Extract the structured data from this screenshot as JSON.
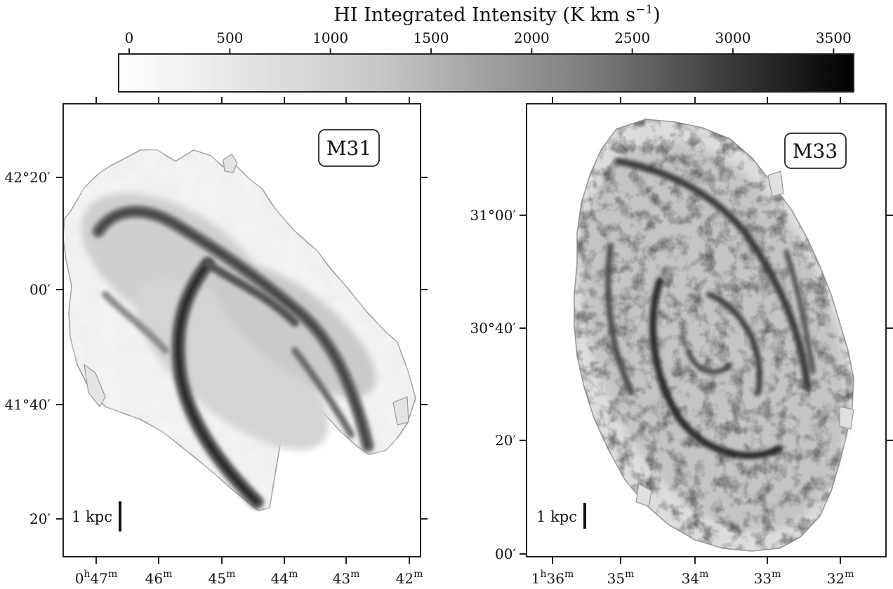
{
  "figure": {
    "colorbar": {
      "title": "HI Integrated Intensity (K km s",
      "title_sup": "−1",
      "title_close": ")",
      "ticks": [
        "0",
        "500",
        "1000",
        "1500",
        "2000",
        "2500",
        "3000",
        "3500"
      ],
      "tick_values": [
        0,
        500,
        1000,
        1500,
        2000,
        2500,
        3000,
        3500
      ],
      "range": [
        0,
        3600
      ],
      "colormap": "white-to-black grayscale",
      "color_low": "#ffffff",
      "color_high": "#000000"
    },
    "panels": [
      {
        "label": "M31",
        "scalebar": "1 kpc",
        "dec_ticks": [
          "42°20′",
          "00′",
          "41°40′",
          "20′"
        ],
        "ra_ticks": [
          {
            "main": "0",
            "h": "h",
            "rest": "47",
            "m": "m"
          },
          {
            "main": "",
            "h": "",
            "rest": "46",
            "m": "m"
          },
          {
            "main": "",
            "h": "",
            "rest": "45",
            "m": "m"
          },
          {
            "main": "",
            "h": "",
            "rest": "44",
            "m": "m"
          },
          {
            "main": "",
            "h": "",
            "rest": "43",
            "m": "m"
          },
          {
            "main": "",
            "h": "",
            "rest": "42",
            "m": "m"
          }
        ]
      },
      {
        "label": "M33",
        "scalebar": "1 kpc",
        "dec_ticks": [
          "31°00′",
          "30°40′",
          "20′",
          "00′"
        ],
        "ra_ticks": [
          {
            "main": "1",
            "h": "h",
            "rest": "36",
            "m": "m"
          },
          {
            "main": "",
            "h": "",
            "rest": "35",
            "m": "m"
          },
          {
            "main": "",
            "h": "",
            "rest": "34",
            "m": "m"
          },
          {
            "main": "",
            "h": "",
            "rest": "33",
            "m": "m"
          },
          {
            "main": "",
            "h": "",
            "rest": "32",
            "m": "m"
          }
        ]
      }
    ]
  },
  "chart_data": {
    "type": "heatmap",
    "title": "HI Integrated Intensity (K km s−1)",
    "colorbar_range": [
      0,
      3600
    ],
    "colorbar_ticks": [
      0,
      500,
      1000,
      1500,
      2000,
      2500,
      3000,
      3500
    ],
    "grid": false,
    "panels": [
      {
        "name": "M31",
        "x_ticks": [
          "0h47m",
          "46m",
          "45m",
          "44m",
          "43m",
          "42m"
        ],
        "y_ticks": [
          "42°20′",
          "00′",
          "41°40′",
          "20′"
        ],
        "scalebar": "1 kpc"
      },
      {
        "name": "M33",
        "x_ticks": [
          "1h36m",
          "35m",
          "34m",
          "33m",
          "32m"
        ],
        "y_ticks": [
          "31°00′",
          "30°40′",
          "20′",
          "00′"
        ],
        "scalebar": "1 kpc"
      }
    ]
  }
}
